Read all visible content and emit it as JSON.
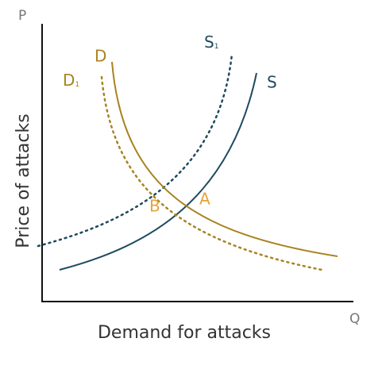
{
  "axes": {
    "y_letter": "P",
    "x_letter": "Q",
    "y_title": "Price of attacks",
    "x_title": "Demand for attacks"
  },
  "curves": [
    {
      "label": "S"
    },
    {
      "label": "S",
      "subscript": "1"
    },
    {
      "label": "D"
    },
    {
      "label": "D",
      "subscript": "1"
    }
  ],
  "points": [
    {
      "label": "A"
    },
    {
      "label": "B"
    }
  ]
}
